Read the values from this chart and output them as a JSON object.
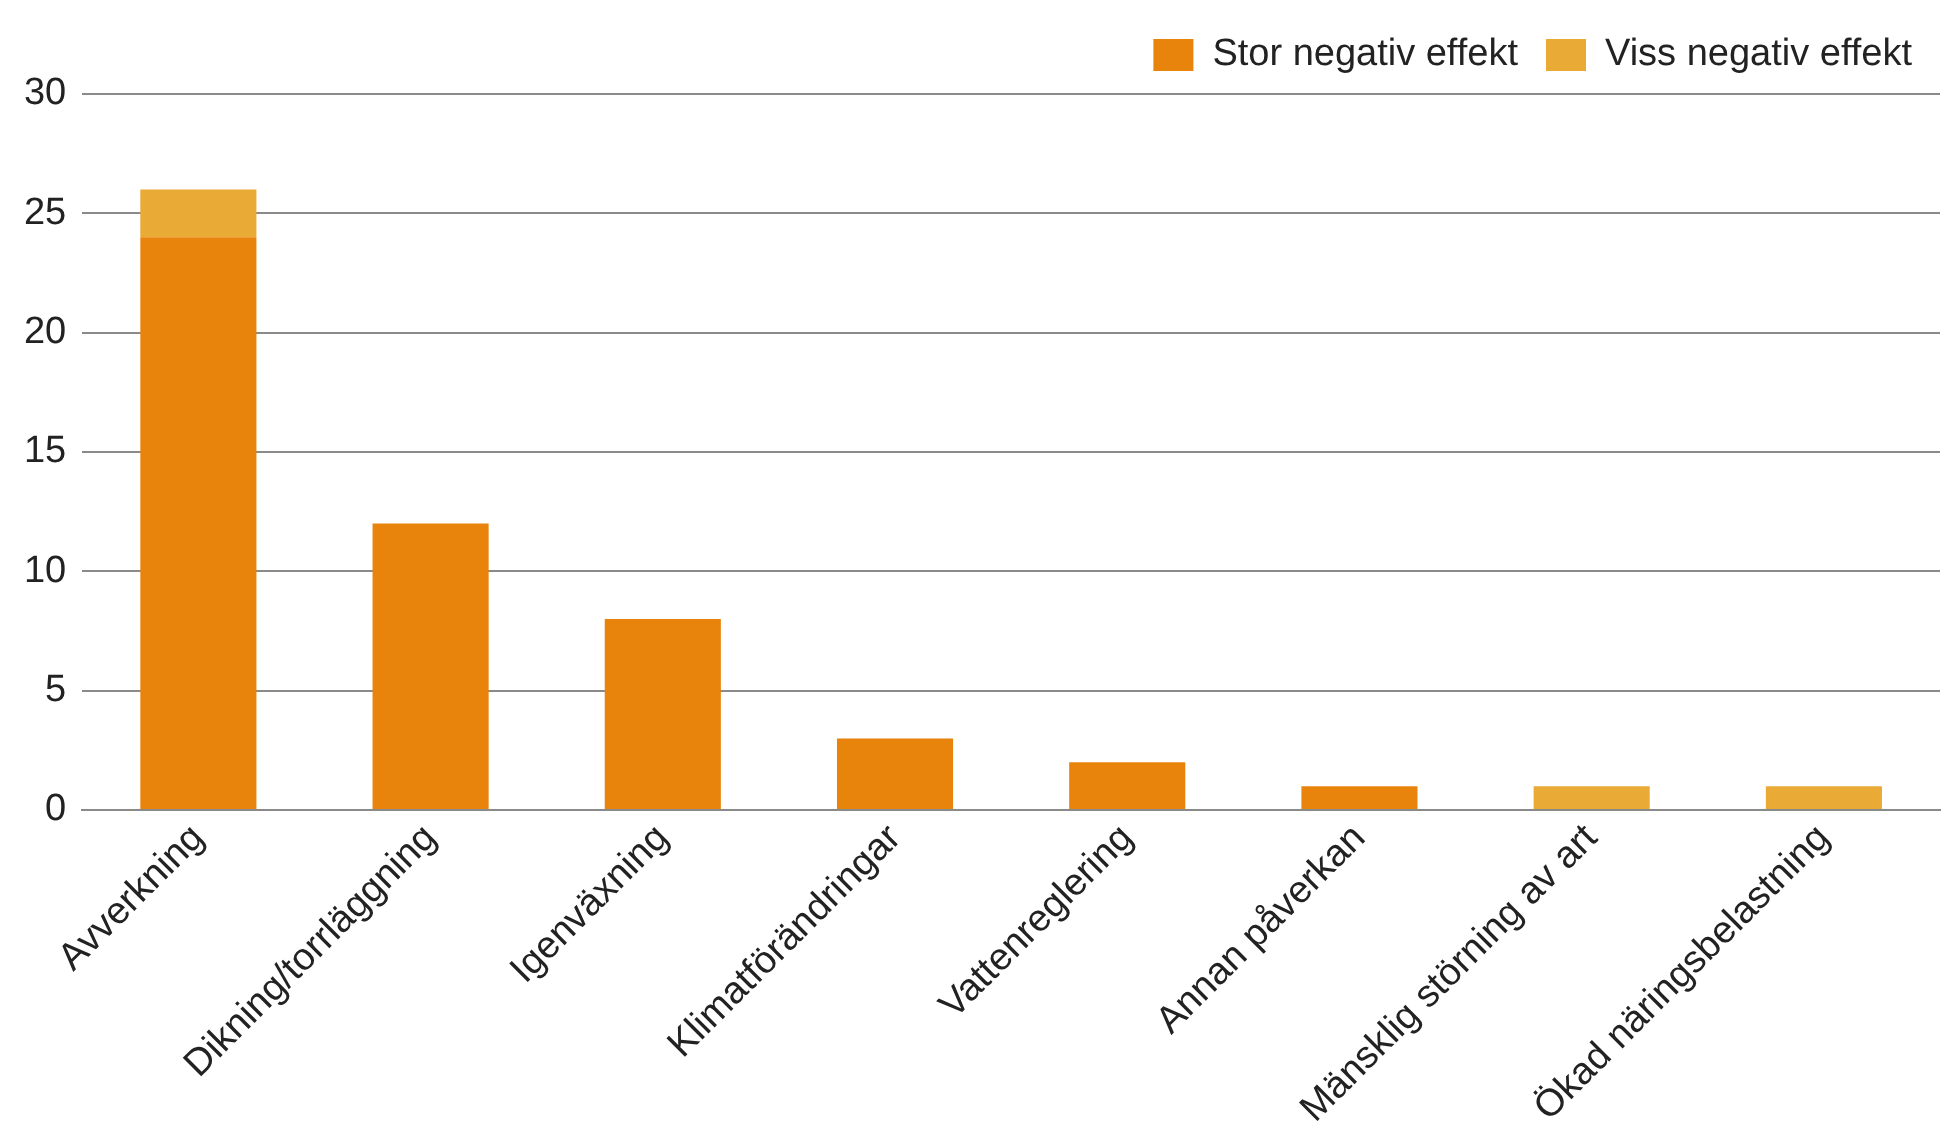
{
  "chart_data": {
    "type": "bar",
    "stacked": true,
    "categories": [
      "Avverkning",
      "Dikning/torrläggning",
      "Igenväxning",
      "Klimatförändringar",
      "Vattenreglering",
      "Annan påverkan",
      "Mänsklig störning av art",
      "Ökad näringsbelastning"
    ],
    "series": [
      {
        "name": "Stor negativ effekt",
        "color": "#e8830c",
        "values": [
          24,
          12,
          8,
          3,
          2,
          1,
          0,
          0
        ]
      },
      {
        "name": "Viss negativ effekt",
        "color": "#eaaa36",
        "values": [
          2,
          0,
          0,
          0,
          0,
          0,
          1,
          1
        ]
      }
    ],
    "ylim": [
      0,
      30
    ],
    "yticks": [
      0,
      5,
      10,
      15,
      20,
      25,
      30
    ],
    "grid": "y",
    "legend": "top right"
  }
}
